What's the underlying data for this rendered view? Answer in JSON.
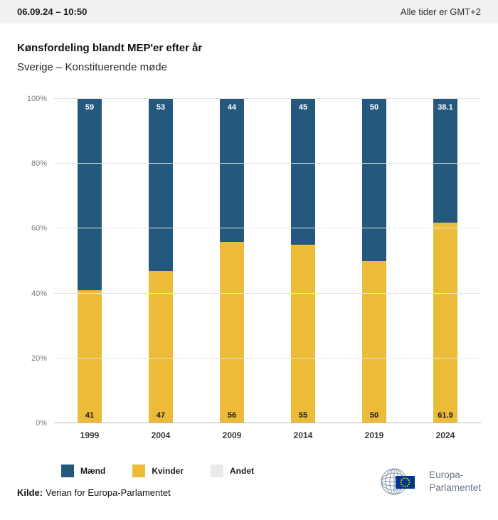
{
  "header": {
    "datetime": "06.09.24 – 10:50",
    "timezone": "Alle tider er GMT+2"
  },
  "title": "Kønsfordeling blandt MEP'er efter år",
  "subtitle": "Sverige – Konstituerende møde",
  "chart_data": {
    "type": "bar",
    "stacked": true,
    "unit": "%",
    "title": "Kønsfordeling blandt MEP'er efter år",
    "subtitle": "Sverige – Konstituerende møde",
    "categories": [
      "1999",
      "2004",
      "2009",
      "2014",
      "2019",
      "2024"
    ],
    "series": [
      {
        "name": "Kvinder",
        "color": "#ecbc38",
        "values": [
          41,
          47,
          56,
          55,
          50,
          61.9
        ]
      },
      {
        "name": "Mænd",
        "color": "#24587c",
        "values": [
          59,
          53,
          44,
          45,
          50,
          38.1
        ]
      }
    ],
    "ylim": [
      0,
      100
    ],
    "yticks": [
      "0%",
      "20%",
      "40%",
      "60%",
      "80%",
      "100%"
    ],
    "grid": true,
    "legend_position": "bottom",
    "legend": [
      {
        "label": "Mænd",
        "color": "#24587c"
      },
      {
        "label": "Kvinder",
        "color": "#ecbc38"
      },
      {
        "label": "Andet",
        "color": "#eaeaea"
      }
    ]
  },
  "footer": {
    "source_label": "Kilde:",
    "source_text": "Verian for Europa-Parlamentet"
  },
  "logo": {
    "line1": "Europa-",
    "line2": "Parlamentet"
  }
}
